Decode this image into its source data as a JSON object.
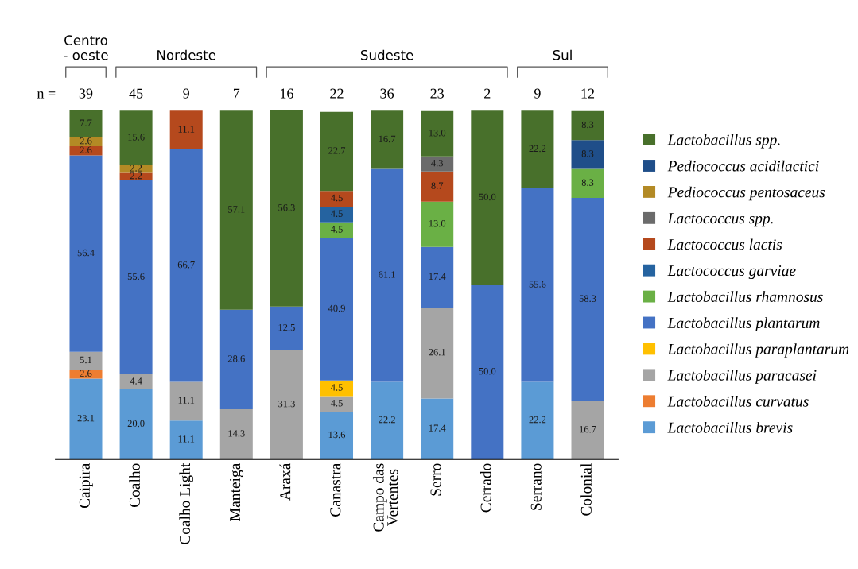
{
  "chart_data": {
    "type": "bar",
    "stacked": true,
    "legend": "right",
    "grid": false,
    "categories": [
      "Caipira",
      "Coalho",
      "Coalho Light",
      "Manteiga",
      "Araxá",
      "Canastra",
      "Campo das\nVertentes",
      "Serro",
      "Cerrado",
      "Serrano",
      "Colonial"
    ],
    "series": [
      {
        "name": "Lactobacillus brevis",
        "color": "#5b9bd5",
        "values": [
          23.1,
          20.0,
          11.1,
          null,
          null,
          13.6,
          22.2,
          17.4,
          null,
          22.2,
          null
        ],
        "value_labels": [
          "23.1",
          "20.0",
          "11.1",
          null,
          null,
          "13.6",
          "22.2",
          "17.4",
          null,
          "22.2",
          null
        ]
      },
      {
        "name": "Lactobacillus curvatus",
        "color": "#ed7d31",
        "values": [
          2.6,
          null,
          null,
          null,
          null,
          null,
          null,
          null,
          null,
          null,
          null
        ],
        "value_labels": [
          "2.6",
          null,
          null,
          null,
          null,
          null,
          null,
          null,
          null,
          null,
          null
        ]
      },
      {
        "name": "Lactobacillus paracasei",
        "color": "#a5a5a5",
        "values": [
          5.1,
          4.4,
          11.1,
          14.3,
          31.3,
          4.5,
          null,
          26.1,
          null,
          null,
          16.7
        ],
        "value_labels": [
          "5.1",
          "4.4",
          "11.1",
          "14.3",
          "31.3",
          "4.5",
          null,
          "26.1",
          null,
          null,
          "16.7"
        ]
      },
      {
        "name": "Lactobacillus paraplantarum",
        "color": "#ffc000",
        "values": [
          null,
          null,
          null,
          null,
          null,
          4.5,
          null,
          null,
          null,
          null,
          null
        ],
        "value_labels": [
          null,
          null,
          null,
          null,
          null,
          "4.5",
          null,
          null,
          null,
          null,
          null
        ]
      },
      {
        "name": "Lactobacillus plantarum",
        "color": "#4472c4",
        "values": [
          56.4,
          55.6,
          66.7,
          28.6,
          12.5,
          40.9,
          61.1,
          17.4,
          50.0,
          55.6,
          58.3
        ],
        "value_labels": [
          "56.4",
          "55.6",
          "66.7",
          "28.6",
          "12.5",
          "40.9",
          "61.1",
          "17.4",
          "50.0",
          "55.6",
          "58.3"
        ]
      },
      {
        "name": "Lactobacillus rhamnosus",
        "color": "#6ab045",
        "values": [
          null,
          null,
          null,
          null,
          null,
          4.5,
          null,
          13.0,
          null,
          null,
          8.3
        ],
        "value_labels": [
          null,
          null,
          null,
          null,
          null,
          "4.5",
          null,
          "13.0",
          null,
          null,
          "8.3"
        ]
      },
      {
        "name": "Lactococcus garviae",
        "color": "#2563a0",
        "values": [
          null,
          null,
          null,
          null,
          null,
          4.5,
          null,
          null,
          null,
          null,
          null
        ],
        "value_labels": [
          null,
          null,
          null,
          null,
          null,
          "4.5",
          null,
          null,
          null,
          null,
          null
        ]
      },
      {
        "name": "Lactococcus lactis",
        "color": "#b5491d",
        "values": [
          2.6,
          2.2,
          11.1,
          null,
          null,
          4.5,
          null,
          8.7,
          null,
          null,
          null
        ],
        "value_labels": [
          "2.6",
          "2.2",
          "11.1",
          null,
          null,
          "4.5",
          null,
          "8.7",
          null,
          null,
          null
        ]
      },
      {
        "name": "Lactococcus spp.",
        "color": "#6b6b6b",
        "values": [
          null,
          null,
          null,
          null,
          null,
          null,
          null,
          4.3,
          null,
          null,
          null
        ],
        "value_labels": [
          null,
          null,
          null,
          null,
          null,
          null,
          null,
          "4.3",
          null,
          null,
          null
        ]
      },
      {
        "name": "Pediococcus pentosaceus",
        "color": "#b38a25",
        "values": [
          2.6,
          2.2,
          null,
          null,
          null,
          null,
          null,
          null,
          null,
          null,
          null
        ],
        "value_labels": [
          "2.6",
          "2.2",
          null,
          null,
          null,
          null,
          null,
          null,
          null,
          null,
          null
        ]
      },
      {
        "name": "Pediococcus acidilactici",
        "color": "#1f4e89",
        "values": [
          null,
          null,
          null,
          null,
          null,
          null,
          null,
          null,
          null,
          null,
          8.3
        ],
        "value_labels": [
          null,
          null,
          null,
          null,
          null,
          null,
          null,
          null,
          null,
          null,
          "8.3"
        ]
      },
      {
        "name": "Lactobacillus spp.",
        "color": "#48702b",
        "values": [
          7.7,
          15.6,
          null,
          57.1,
          56.3,
          22.7,
          16.7,
          13.0,
          50.0,
          22.2,
          8.3
        ],
        "value_labels": [
          "7.7",
          "15.6",
          null,
          "57.1",
          "56.3",
          "22.7",
          "16.7",
          "13.0",
          "50.0",
          "22.2",
          "8.3"
        ]
      }
    ],
    "annotations": [
      "Centro\n- oeste",
      "Nordeste",
      "Sudeste",
      "Sul",
      "n =",
      "39",
      "45",
      "9",
      "7",
      "16",
      "22",
      "36",
      "23",
      "2",
      "9",
      "12"
    ]
  }
}
